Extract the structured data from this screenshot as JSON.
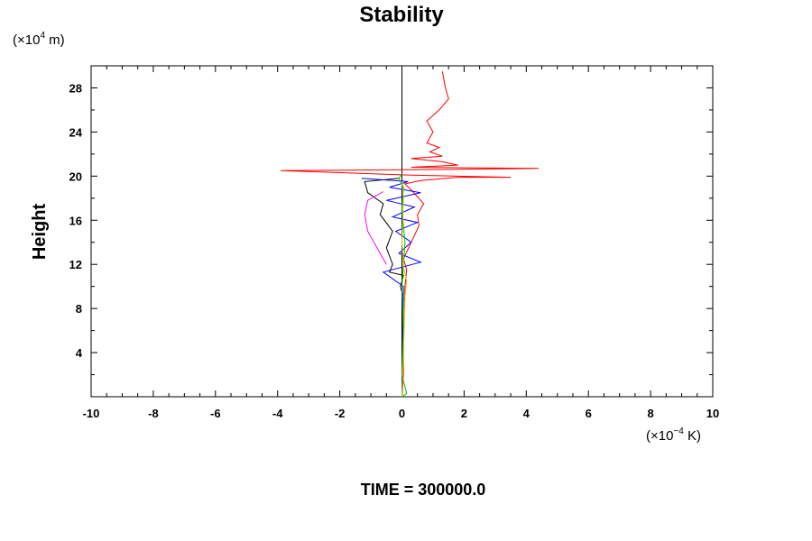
{
  "chart_data": {
    "type": "line",
    "title": "Stability",
    "ylabel": "Height",
    "xlabel": "",
    "y_unit_prefix": "(×10",
    "y_unit_exp": "4",
    "y_unit_suffix": " m)",
    "x_unit_prefix": "(×10",
    "x_unit_exp": "−4",
    "x_unit_suffix": " K)",
    "xlim": [
      -10,
      10
    ],
    "ylim": [
      0,
      30
    ],
    "x_ticks": [
      -10,
      -8,
      -6,
      -4,
      -2,
      0,
      2,
      4,
      6,
      8,
      10
    ],
    "x_tick_labels": [
      "-10",
      "-8",
      "-6",
      "-4",
      "-2",
      "0",
      "2",
      "4",
      "6",
      "8",
      "10"
    ],
    "y_ticks": [
      4,
      8,
      12,
      16,
      20,
      24,
      28
    ],
    "y_tick_labels": [
      "4",
      "8",
      "12",
      "16",
      "20",
      "24",
      "28"
    ],
    "grid": false,
    "zero_line_x": 0,
    "footer": "TIME = 300000.0",
    "series": [
      {
        "color": "#ff0000",
        "points": [
          [
            0.0,
            0
          ],
          [
            0.05,
            2
          ],
          [
            0.05,
            5
          ],
          [
            0.08,
            8
          ],
          [
            0.1,
            10
          ],
          [
            0.15,
            11.5
          ],
          [
            0.05,
            12.5
          ],
          [
            0.3,
            14
          ],
          [
            0.55,
            15.5
          ],
          [
            0.5,
            16.5
          ],
          [
            0.7,
            17.5
          ],
          [
            0.35,
            18.6
          ],
          [
            0.1,
            19.3
          ],
          [
            0.6,
            19.6
          ],
          [
            1.8,
            19.9
          ],
          [
            3.5,
            19.9
          ],
          [
            0.2,
            20.1
          ],
          [
            -3.9,
            20.5
          ],
          [
            1.0,
            20.6
          ],
          [
            4.4,
            20.7
          ],
          [
            0.3,
            20.8
          ],
          [
            1.8,
            21.0
          ],
          [
            1.3,
            21.3
          ],
          [
            0.3,
            21.6
          ],
          [
            1.3,
            21.8
          ],
          [
            0.9,
            22.2
          ],
          [
            1.2,
            22.6
          ],
          [
            0.8,
            23.0
          ],
          [
            1.0,
            24.0
          ],
          [
            0.8,
            25.0
          ],
          [
            1.2,
            26.0
          ],
          [
            1.5,
            27.0
          ],
          [
            1.4,
            28.0
          ],
          [
            1.3,
            29.5
          ]
        ]
      },
      {
        "color": "#000000",
        "points": [
          [
            0.0,
            0
          ],
          [
            0.02,
            3
          ],
          [
            0.0,
            6
          ],
          [
            0.05,
            9
          ],
          [
            -0.05,
            10
          ],
          [
            0.05,
            11
          ],
          [
            -0.4,
            11.3
          ],
          [
            -0.3,
            12.0
          ],
          [
            -0.5,
            13.5
          ],
          [
            -0.3,
            15.0
          ],
          [
            -0.7,
            16.5
          ],
          [
            -0.6,
            17.5
          ],
          [
            -1.1,
            18.5
          ],
          [
            -1.2,
            19.5
          ],
          [
            -0.1,
            19.8
          ]
        ]
      },
      {
        "color": "#0000ff",
        "points": [
          [
            0.0,
            0
          ],
          [
            0.02,
            5
          ],
          [
            0.05,
            10
          ],
          [
            -0.6,
            11.3
          ],
          [
            0.6,
            12.2
          ],
          [
            -0.1,
            13.0
          ],
          [
            0.3,
            14.0
          ],
          [
            -0.2,
            15.0
          ],
          [
            0.5,
            15.8
          ],
          [
            -0.3,
            16.3
          ],
          [
            0.4,
            17.2
          ],
          [
            -0.5,
            17.8
          ],
          [
            0.6,
            18.5
          ],
          [
            -0.4,
            19.0
          ],
          [
            0.2,
            19.5
          ],
          [
            -1.3,
            19.8
          ]
        ]
      },
      {
        "color": "#ff00ff",
        "points": [
          [
            -0.5,
            12.0
          ],
          [
            -0.8,
            13.5
          ],
          [
            -1.1,
            15.0
          ],
          [
            -1.2,
            16.5
          ],
          [
            -1.1,
            17.8
          ],
          [
            -0.6,
            18.6
          ]
        ]
      },
      {
        "color": "#00c000",
        "points": [
          [
            0.0,
            0
          ],
          [
            0.15,
            0.3
          ],
          [
            0.0,
            2
          ],
          [
            0.05,
            6
          ],
          [
            0.0,
            10
          ],
          [
            0.1,
            14
          ],
          [
            0.0,
            17
          ],
          [
            0.05,
            19
          ],
          [
            -0.1,
            19.8
          ],
          [
            0.0,
            20.2
          ]
        ]
      },
      {
        "color": "#d8c800",
        "points": [
          [
            0.0,
            0
          ],
          [
            0.05,
            4
          ],
          [
            0.1,
            9
          ],
          [
            0.15,
            10.5
          ],
          [
            0.05,
            11.8
          ],
          [
            0.0,
            14
          ],
          [
            0.05,
            18
          ],
          [
            0.0,
            19.5
          ]
        ]
      }
    ]
  }
}
